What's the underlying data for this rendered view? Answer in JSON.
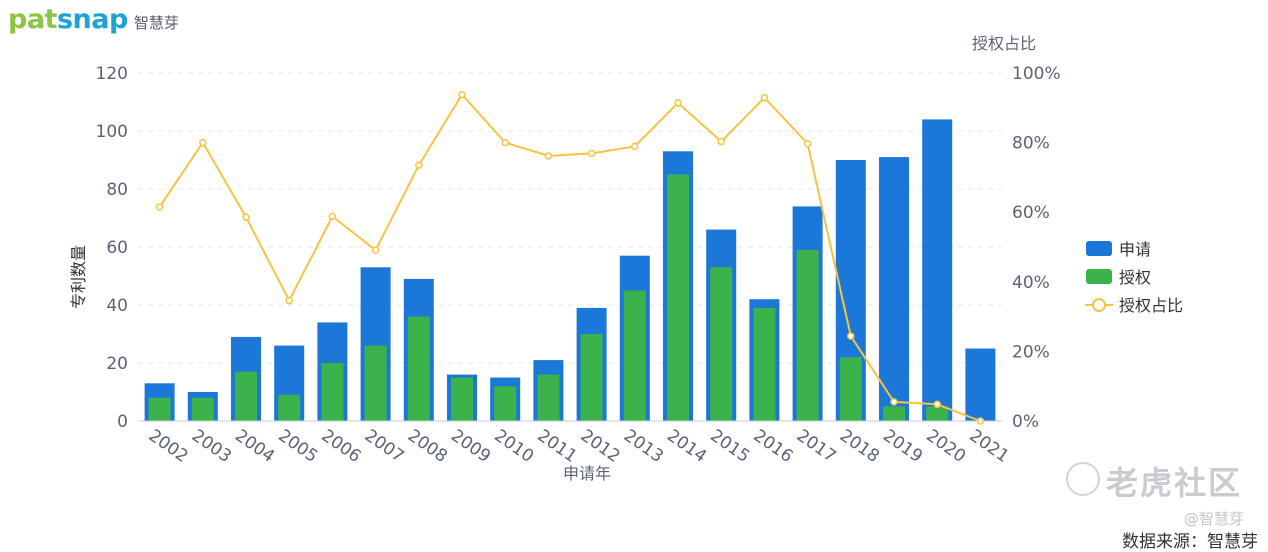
{
  "logo": {
    "brand_part1": "pat",
    "brand_part2": "snap",
    "brand_cn": "智慧芽"
  },
  "watermark": {
    "main": "老虎社区",
    "user": "@智慧芽"
  },
  "source": "数据来源：智慧芽",
  "colors": {
    "apply": "#1b78d8",
    "grant": "#3cb34a",
    "ratio": "#f6c440",
    "axis_text": "#5c6377",
    "grid": "#e3e5ea"
  },
  "chart_data": {
    "type": "bar",
    "categories": [
      "2002",
      "2003",
      "2004",
      "2005",
      "2006",
      "2007",
      "2008",
      "2009",
      "2010",
      "2011",
      "2012",
      "2013",
      "2014",
      "2015",
      "2016",
      "2017",
      "2018",
      "2019",
      "2020",
      "2021"
    ],
    "series": [
      {
        "name": "申请",
        "type": "bar",
        "axis": "left",
        "values": [
          13,
          10,
          29,
          26,
          34,
          53,
          49,
          16,
          15,
          21,
          39,
          57,
          93,
          66,
          42,
          74,
          90,
          91,
          104,
          25
        ]
      },
      {
        "name": "授权",
        "type": "bar",
        "axis": "left",
        "values": [
          8,
          8,
          17,
          9,
          20,
          26,
          36,
          15,
          12,
          16,
          30,
          45,
          85,
          53,
          39,
          59,
          22,
          5,
          5,
          0
        ]
      },
      {
        "name": "授权占比",
        "type": "line",
        "axis": "right",
        "values": [
          61.5,
          80,
          58.6,
          34.6,
          58.8,
          49.1,
          73.5,
          93.8,
          80,
          76.2,
          76.9,
          78.9,
          91.4,
          80.3,
          92.9,
          79.7,
          24.4,
          5.5,
          4.8,
          0
        ]
      }
    ],
    "xlabel": "申请年",
    "ylabel": "专利数量",
    "y2label": "授权占比",
    "ylim": [
      0,
      120
    ],
    "yticks": [
      "0",
      "20",
      "40",
      "60",
      "80",
      "100",
      "120"
    ],
    "y2lim": [
      0,
      100
    ],
    "y2ticks": [
      "0%",
      "20%",
      "40%",
      "60%",
      "80%",
      "100%"
    ],
    "grid": true,
    "legend_position": "right"
  }
}
